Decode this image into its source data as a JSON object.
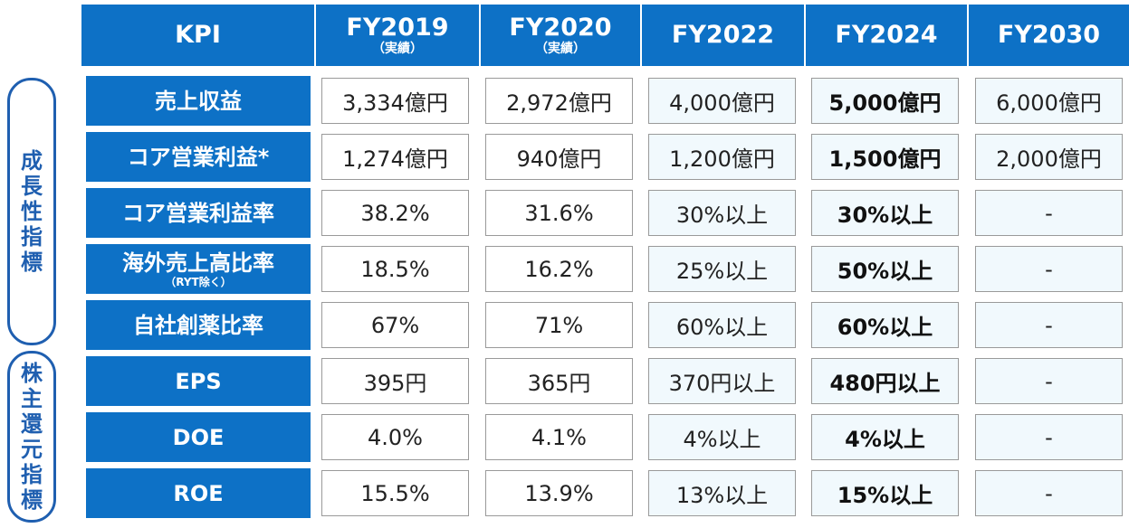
{
  "header": {
    "kpi": "KPI",
    "columns": [
      {
        "label": "FY2019",
        "sub": "（実績）"
      },
      {
        "label": "FY2020",
        "sub": "（実績）"
      },
      {
        "label": "FY2022",
        "sub": ""
      },
      {
        "label": "FY2024",
        "sub": ""
      },
      {
        "label": "FY2030",
        "sub": ""
      }
    ]
  },
  "groups": {
    "growth": "成長性指標",
    "shareholder": "株主還元指標"
  },
  "rows": [
    {
      "label": "売上収益",
      "sub": "",
      "values": [
        "3,334億円",
        "2,972億円",
        "4,000億円",
        "5,000億円",
        "6,000億円"
      ]
    },
    {
      "label": "コア営業利益*",
      "sub": "",
      "values": [
        "1,274億円",
        "940億円",
        "1,200億円",
        "1,500億円",
        "2,000億円"
      ]
    },
    {
      "label": "コア営業利益率",
      "sub": "",
      "values": [
        "38.2%",
        "31.6%",
        "30%以上",
        "30%以上",
        "-"
      ]
    },
    {
      "label": "海外売上高比率",
      "sub": "（RYT除く）",
      "values": [
        "18.5%",
        "16.2%",
        "25%以上",
        "50%以上",
        "-"
      ]
    },
    {
      "label": "自社創薬比率",
      "sub": "",
      "values": [
        "67%",
        "71%",
        "60%以上",
        "60%以上",
        "-"
      ]
    },
    {
      "label": "EPS",
      "sub": "",
      "values": [
        "395円",
        "365円",
        "370円以上",
        "480円以上",
        "-"
      ]
    },
    {
      "label": "DOE",
      "sub": "",
      "values": [
        "4.0%",
        "4.1%",
        "4%以上",
        "4%以上",
        "-"
      ]
    },
    {
      "label": "ROE",
      "sub": "",
      "values": [
        "15.5%",
        "13.9%",
        "13%以上",
        "15%以上",
        "-"
      ]
    }
  ],
  "colors": {
    "header_blue": "#0d71c6",
    "group_outline": "#1f5fb0",
    "tint_cell": "#f1f9fd"
  }
}
